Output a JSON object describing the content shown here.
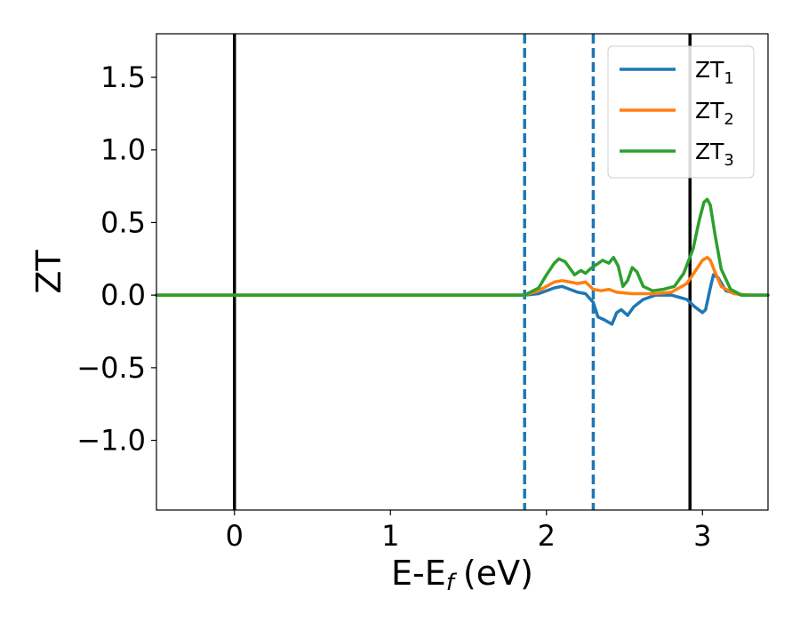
{
  "chart_data": {
    "type": "line",
    "xlabel": "E-E",
    "xlabel_sub": "f",
    "xlabel_unit": "(eV)",
    "ylabel": "ZT",
    "xlim": [
      -0.5,
      3.42
    ],
    "ylim": [
      -1.48,
      1.8
    ],
    "xticks": [
      0,
      1,
      2,
      3
    ],
    "xtick_labels": [
      "0",
      "1",
      "2",
      "3"
    ],
    "yticks": [
      -1.0,
      -0.5,
      0.0,
      0.5,
      1.0,
      1.5
    ],
    "ytick_labels": [
      "−1.0",
      "−0.5",
      "0.0",
      "0.5",
      "1.0",
      "1.5"
    ],
    "grid": false,
    "legend_position": "top-right",
    "vlines": [
      {
        "x": 0.0,
        "style": "solid",
        "color": "#000000"
      },
      {
        "x": 2.92,
        "style": "solid",
        "color": "#000000"
      },
      {
        "x": 1.86,
        "style": "dashed",
        "color": "#1f77b4"
      },
      {
        "x": 2.3,
        "style": "dashed",
        "color": "#1f77b4"
      }
    ],
    "series": [
      {
        "name": "ZT",
        "name_sub": "1",
        "color": "#1f77b4",
        "x": [
          -0.5,
          1.86,
          1.95,
          2.05,
          2.1,
          2.15,
          2.2,
          2.25,
          2.3,
          2.33,
          2.37,
          2.42,
          2.45,
          2.48,
          2.52,
          2.56,
          2.62,
          2.7,
          2.8,
          2.9,
          2.95,
          3.0,
          3.02,
          3.05,
          3.07,
          3.1,
          3.15,
          3.25,
          3.42
        ],
        "y": [
          0.0,
          0.0,
          0.01,
          0.05,
          0.06,
          0.04,
          0.02,
          0.01,
          -0.05,
          -0.15,
          -0.17,
          -0.2,
          -0.12,
          -0.1,
          -0.14,
          -0.08,
          -0.03,
          0.0,
          0.0,
          -0.03,
          -0.08,
          -0.12,
          -0.1,
          0.05,
          0.14,
          0.12,
          0.03,
          0.0,
          0.0
        ]
      },
      {
        "name": "ZT",
        "name_sub": "2",
        "color": "#ff7f0e",
        "x": [
          -0.5,
          1.86,
          1.95,
          2.05,
          2.1,
          2.15,
          2.2,
          2.25,
          2.3,
          2.35,
          2.4,
          2.45,
          2.55,
          2.7,
          2.8,
          2.9,
          2.95,
          3.0,
          3.03,
          3.05,
          3.08,
          3.12,
          3.2,
          3.3,
          3.42
        ],
        "y": [
          0.0,
          0.0,
          0.03,
          0.09,
          0.1,
          0.09,
          0.08,
          0.09,
          0.04,
          0.03,
          0.04,
          0.02,
          0.01,
          0.01,
          0.02,
          0.08,
          0.16,
          0.24,
          0.26,
          0.24,
          0.16,
          0.06,
          0.01,
          0.0,
          0.0
        ]
      },
      {
        "name": "ZT",
        "name_sub": "3",
        "color": "#2ca02c",
        "x": [
          -0.5,
          1.86,
          1.95,
          2.0,
          2.05,
          2.08,
          2.12,
          2.18,
          2.22,
          2.25,
          2.28,
          2.32,
          2.36,
          2.4,
          2.43,
          2.46,
          2.49,
          2.52,
          2.55,
          2.58,
          2.62,
          2.68,
          2.75,
          2.82,
          2.88,
          2.94,
          2.98,
          3.01,
          3.03,
          3.05,
          3.08,
          3.12,
          3.18,
          3.25,
          3.42
        ],
        "y": [
          0.0,
          0.0,
          0.05,
          0.14,
          0.22,
          0.25,
          0.23,
          0.14,
          0.17,
          0.15,
          0.18,
          0.21,
          0.24,
          0.22,
          0.26,
          0.2,
          0.06,
          0.1,
          0.19,
          0.16,
          0.06,
          0.03,
          0.04,
          0.06,
          0.15,
          0.32,
          0.52,
          0.64,
          0.66,
          0.62,
          0.42,
          0.18,
          0.04,
          0.0,
          0.0
        ]
      }
    ]
  }
}
